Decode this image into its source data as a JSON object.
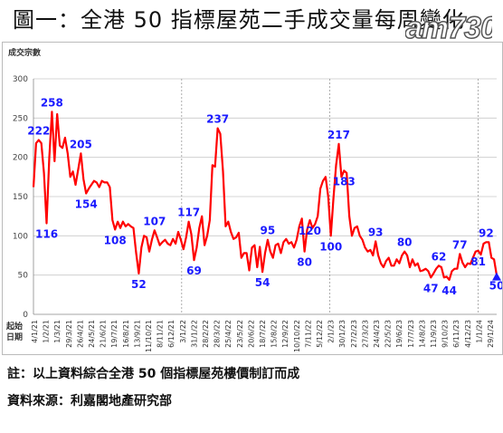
{
  "header": {
    "title": "圖一：全港 50 指標屋苑二手成交量每周變化",
    "logo_text": "am730"
  },
  "chart_data": {
    "type": "line",
    "title": "",
    "ylabel": "成交宗數",
    "xlabel": "",
    "x_axis_start_label": [
      "起始",
      "日期"
    ],
    "ylim": [
      0,
      300
    ],
    "yticks": [
      0,
      50,
      100,
      150,
      200,
      250,
      300
    ],
    "grid": true,
    "line_color": "#ff0000",
    "label_color": "#1a1aff",
    "xticks": [
      "4/1/21",
      "1/2/21",
      "1/3/21",
      "29/3/21",
      "26/4/21",
      "24/5/21",
      "21/6/21",
      "19/7/21",
      "16/8/21",
      "13/9/21",
      "11/10/21",
      "8/11/21",
      "6/12/21",
      "3/1/22",
      "31/1/22",
      "28/2/22",
      "28/3/22",
      "25/4/22",
      "23/5/22",
      "20/6/22",
      "18/7/22",
      "15/8/22",
      "12/9/22",
      "10/10/22",
      "7/11/22",
      "5/12/22",
      "2/1/23",
      "30/1/23",
      "27/2/23",
      "27/3/23",
      "24/4/23",
      "22/5/23",
      "19/6/23",
      "17/7/23",
      "14/8/23",
      "11/9/23",
      "9/10/23",
      "6/11/23",
      "4/12/23",
      "1/1/24",
      "29/1/24"
    ],
    "series": [
      {
        "name": "",
        "values": [
          162,
          218,
          222,
          218,
          180,
          116,
          200,
          258,
          195,
          255,
          215,
          212,
          225,
          205,
          175,
          182,
          165,
          185,
          205,
          172,
          154,
          160,
          165,
          170,
          168,
          162,
          170,
          168,
          168,
          162,
          120,
          108,
          118,
          110,
          118,
          112,
          115,
          112,
          110,
          78,
          52,
          85,
          100,
          98,
          80,
          95,
          107,
          98,
          88,
          92,
          95,
          90,
          88,
          96,
          90,
          105,
          95,
          83,
          98,
          118,
          102,
          69,
          85,
          110,
          125,
          88,
          100,
          120,
          190,
          188,
          237,
          230,
          182,
          112,
          118,
          105,
          96,
          98,
          104,
          72,
          78,
          78,
          56,
          85,
          88,
          60,
          86,
          54,
          78,
          95,
          80,
          72,
          88,
          90,
          78,
          92,
          96,
          90,
          92,
          85,
          95,
          112,
          122,
          80,
          108,
          120,
          110,
          115,
          125,
          160,
          170,
          175,
          150,
          100,
          148,
          190,
          217,
          175,
          183,
          180,
          125,
          100,
          110,
          112,
          100,
          95,
          85,
          80,
          82,
          75,
          93,
          75,
          65,
          60,
          68,
          72,
          62,
          62,
          70,
          65,
          75,
          80,
          75,
          60,
          70,
          62,
          65,
          55,
          56,
          58,
          55,
          47,
          52,
          58,
          62,
          60,
          47,
          48,
          44,
          55,
          58,
          58,
          77,
          66,
          60,
          65,
          64,
          72,
          80,
          81,
          76,
          90,
          92,
          92,
          72,
          70,
          50
        ]
      }
    ],
    "annotations": [
      {
        "text": "222",
        "x": "4/1/21"
      },
      {
        "text": "116",
        "x": "1/2/21"
      },
      {
        "text": "258",
        "x": "1/3/21"
      },
      {
        "text": "205",
        "x": "26/4/21"
      },
      {
        "text": "154",
        "x": "24/5/21"
      },
      {
        "text": "108",
        "x": "16/8/21"
      },
      {
        "text": "52",
        "x": "11/10/21"
      },
      {
        "text": "107",
        "x": "8/11/21"
      },
      {
        "text": "117",
        "x": "31/1/22"
      },
      {
        "text": "69",
        "x": "31/1/22"
      },
      {
        "text": "237",
        "x": "28/3/22"
      },
      {
        "text": "95",
        "x": "15/8/22"
      },
      {
        "text": "54",
        "x": "18/7/22"
      },
      {
        "text": "120",
        "x": "7/11/22"
      },
      {
        "text": "80",
        "x": "10/10/22"
      },
      {
        "text": "217",
        "x": "30/1/23"
      },
      {
        "text": "100",
        "x": "2/1/23"
      },
      {
        "text": "183",
        "x": "27/2/23"
      },
      {
        "text": "93",
        "x": "24/4/23"
      },
      {
        "text": "80",
        "x": "19/6/23"
      },
      {
        "text": "47",
        "x": "14/8/23"
      },
      {
        "text": "62",
        "x": "11/9/23"
      },
      {
        "text": "44",
        "x": "11/9/23"
      },
      {
        "text": "77",
        "x": "6/11/23"
      },
      {
        "text": "81",
        "x": "4/12/23"
      },
      {
        "text": "92",
        "x": "1/1/24"
      },
      {
        "text": "50",
        "x": "29/1/24"
      }
    ]
  },
  "notes": {
    "note1": "註：以上資料綜合全港 50 個指標屋苑樓價制訂而成",
    "note2": "資料來源：利嘉閣地產研究部"
  }
}
